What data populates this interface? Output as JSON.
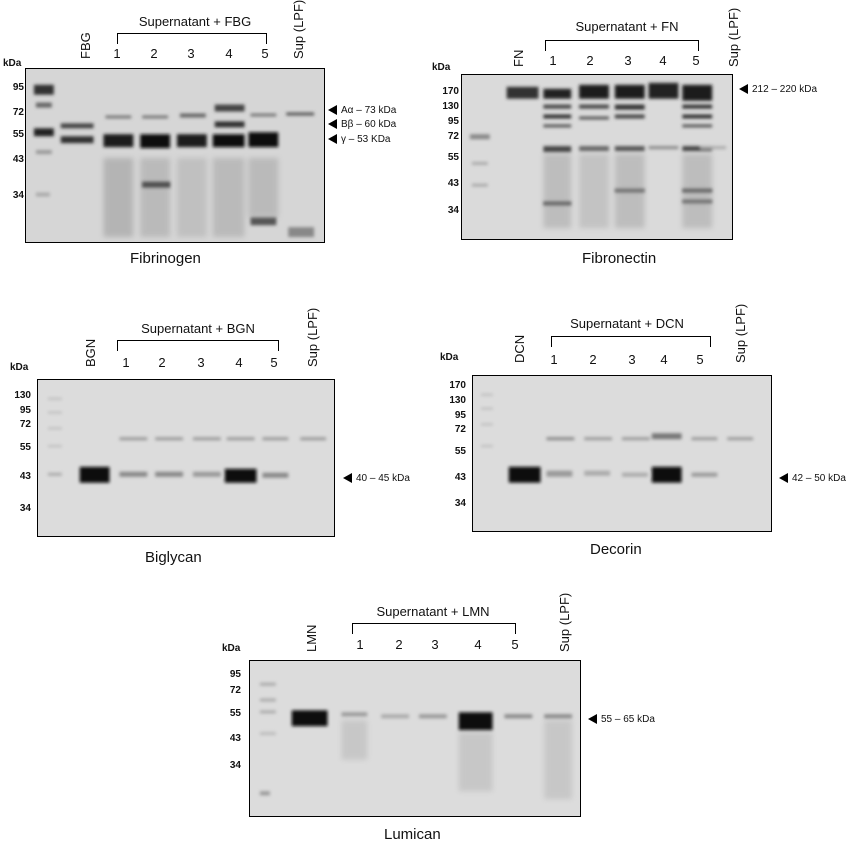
{
  "kda_label": "kDa",
  "lanes_numbered": [
    "1",
    "2",
    "3",
    "4",
    "5"
  ],
  "sup_lane": "Sup (LPF)",
  "panels": {
    "fibrinogen": {
      "caption": "Fibrinogen",
      "std_lane": "FBG",
      "group_label": "Supernatant + FBG",
      "markers": [
        "95",
        "72",
        "55",
        "43",
        "34"
      ],
      "annotations": [
        "Aα – 73 kDa",
        "Bβ – 60 kDa",
        "γ – 53 KDa"
      ]
    },
    "fibronectin": {
      "caption": "Fibronectin",
      "std_lane": "FN",
      "group_label": "Supernatant + FN",
      "markers": [
        "170",
        "130",
        "95",
        "72",
        "55",
        "43",
        "34"
      ],
      "annotations": [
        "212 – 220 kDa"
      ]
    },
    "biglycan": {
      "caption": "Biglycan",
      "std_lane": "BGN",
      "group_label": "Supernatant + BGN",
      "markers": [
        "130",
        "95",
        "72",
        "55",
        "43",
        "34"
      ],
      "annotations": [
        "40 – 45 kDa"
      ]
    },
    "decorin": {
      "caption": "Decorin",
      "std_lane": "DCN",
      "group_label": "Supernatant + DCN",
      "markers": [
        "170",
        "130",
        "95",
        "72",
        "55",
        "43",
        "34"
      ],
      "annotations": [
        "42 – 50 kDa"
      ]
    },
    "lumican": {
      "caption": "Lumican",
      "std_lane": "LMN",
      "group_label": "Supernatant + LMN",
      "markers": [
        "95",
        "72",
        "55",
        "43",
        "34"
      ],
      "annotations": [
        "55 – 65 kDa"
      ]
    }
  }
}
